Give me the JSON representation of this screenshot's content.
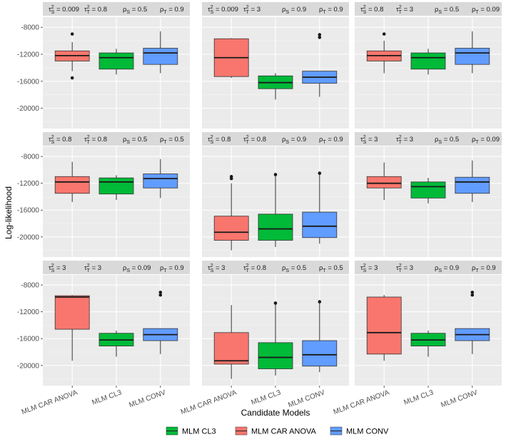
{
  "chart_data": {
    "type": "box",
    "xlabel": "Candidate Models",
    "ylabel": "Log-likelihood",
    "categories": [
      "MLM CAR ANOVA",
      "MLM CL3",
      "MLM CONV"
    ],
    "y_ticks": [
      -8000,
      -12000,
      -16000,
      -20000
    ],
    "y_tick_labels": [
      "-8000",
      "-12000",
      "-16000",
      "-20000"
    ],
    "ylim": [
      -23000,
      -6500
    ],
    "grid": true,
    "legend": {
      "position": "bottom",
      "entries": [
        {
          "label": "MLM CL3",
          "color": "#00BA38"
        },
        {
          "label": "MLM CAR ANOVA",
          "color": "#F8766D"
        },
        {
          "label": "MLM CONV",
          "color": "#619CFF"
        }
      ]
    },
    "series_colors": {
      "MLM CAR ANOVA": "#F8766D",
      "MLM CL3": "#00BA38",
      "MLM CONV": "#619CFF"
    },
    "panels": [
      {
        "strip": {
          "tauS": "0.009",
          "tauT": "0.8",
          "rhoS": "0.5",
          "rhoT": "0.9"
        },
        "boxes": [
          {
            "model": "MLM CAR ANOVA",
            "min": -14500,
            "q1": -13000,
            "median": -12200,
            "q3": -11500,
            "max": -10200,
            "outliers": [
              -9000,
              -15500
            ]
          },
          {
            "model": "MLM CL3",
            "min": -15000,
            "q1": -14200,
            "median": -12500,
            "q3": -11800,
            "max": -11200,
            "outliers": []
          },
          {
            "model": "MLM CONV",
            "min": -14800,
            "q1": -13500,
            "median": -11800,
            "q3": -11100,
            "max": -8600,
            "outliers": []
          }
        ]
      },
      {
        "strip": {
          "tauS": "0.009",
          "tauT": "3",
          "rhoS": "0.9",
          "rhoT": "0.9"
        },
        "boxes": [
          {
            "model": "MLM CAR ANOVA",
            "min": -15500,
            "q1": -15300,
            "median": -12500,
            "q3": -9700,
            "max": -9600,
            "outliers": []
          },
          {
            "model": "MLM CL3",
            "min": -18700,
            "q1": -17100,
            "median": -16200,
            "q3": -15200,
            "max": -14800,
            "outliers": []
          },
          {
            "model": "MLM CONV",
            "min": -18300,
            "q1": -16300,
            "median": -15400,
            "q3": -14500,
            "max": -14500,
            "outliers": [
              -9100,
              -9500
            ]
          }
        ]
      },
      {
        "strip": {
          "tauS": "0.8",
          "tauT": "3",
          "rhoS": "0.5",
          "rhoT": "0.09"
        },
        "boxes": [
          {
            "model": "MLM CAR ANOVA",
            "min": -14800,
            "q1": -13000,
            "median": -12200,
            "q3": -11500,
            "max": -10000,
            "outliers": [
              -9000
            ]
          },
          {
            "model": "MLM CL3",
            "min": -15000,
            "q1": -14200,
            "median": -12500,
            "q3": -11800,
            "max": -11200,
            "outliers": []
          },
          {
            "model": "MLM CONV",
            "min": -14800,
            "q1": -13500,
            "median": -11800,
            "q3": -11100,
            "max": -8600,
            "outliers": []
          }
        ]
      },
      {
        "strip": {
          "tauS": "0.8",
          "tauT": "0.8",
          "rhoS": "0.5",
          "rhoT": "0.5"
        },
        "boxes": [
          {
            "model": "MLM CAR ANOVA",
            "min": -14800,
            "q1": -13500,
            "median": -11800,
            "q3": -11000,
            "max": -8800,
            "outliers": []
          },
          {
            "model": "MLM CL3",
            "min": -14500,
            "q1": -13600,
            "median": -11800,
            "q3": -11200,
            "max": -10800,
            "outliers": []
          },
          {
            "model": "MLM CONV",
            "min": -14200,
            "q1": -12700,
            "median": -11300,
            "q3": -10600,
            "max": -8400,
            "outliers": []
          }
        ]
      },
      {
        "strip": {
          "tauS": "0.8",
          "tauT": "0.8",
          "rhoS": "0.9",
          "rhoT": "0.9"
        },
        "boxes": [
          {
            "model": "MLM CAR ANOVA",
            "min": -22000,
            "q1": -20500,
            "median": -19300,
            "q3": -16900,
            "max": -12000,
            "outliers": [
              -11000,
              -11300
            ]
          },
          {
            "model": "MLM CL3",
            "min": -21500,
            "q1": -20500,
            "median": -18800,
            "q3": -16600,
            "max": -10800,
            "outliers": [
              -10700
            ]
          },
          {
            "model": "MLM CONV",
            "min": -21000,
            "q1": -20100,
            "median": -18400,
            "q3": -16300,
            "max": -10600,
            "outliers": [
              -10500
            ]
          }
        ]
      },
      {
        "strip": {
          "tauS": "3",
          "tauT": "3",
          "rhoS": "0.5",
          "rhoT": "0.09"
        },
        "boxes": [
          {
            "model": "MLM CAR ANOVA",
            "min": -14500,
            "q1": -12700,
            "median": -12000,
            "q3": -11000,
            "max": -8900,
            "outliers": []
          },
          {
            "model": "MLM CL3",
            "min": -15000,
            "q1": -14200,
            "median": -12500,
            "q3": -11800,
            "max": -11200,
            "outliers": []
          },
          {
            "model": "MLM CONV",
            "min": -14800,
            "q1": -13500,
            "median": -11800,
            "q3": -11100,
            "max": -8600,
            "outliers": []
          }
        ]
      },
      {
        "strip": {
          "tauS": "3",
          "tauT": "3",
          "rhoS": "0.09",
          "rhoT": "0.9"
        },
        "boxes": [
          {
            "model": "MLM CAR ANOVA",
            "min": -19300,
            "q1": -14600,
            "median": -9800,
            "q3": -9600,
            "max": -9500,
            "outliers": []
          },
          {
            "model": "MLM CL3",
            "min": -18700,
            "q1": -17100,
            "median": -16200,
            "q3": -15200,
            "max": -14800,
            "outliers": []
          },
          {
            "model": "MLM CONV",
            "min": -18300,
            "q1": -16300,
            "median": -15400,
            "q3": -14500,
            "max": -14500,
            "outliers": [
              -9100,
              -9500
            ]
          }
        ]
      },
      {
        "strip": {
          "tauS": "3",
          "tauT": "0.8",
          "rhoS": "0.5",
          "rhoT": "0.5"
        },
        "boxes": [
          {
            "model": "MLM CAR ANOVA",
            "min": -22000,
            "q1": -19800,
            "median": -19300,
            "q3": -15100,
            "max": -11000,
            "outliers": []
          },
          {
            "model": "MLM CL3",
            "min": -21500,
            "q1": -20500,
            "median": -18800,
            "q3": -16600,
            "max": -10800,
            "outliers": [
              -10700
            ]
          },
          {
            "model": "MLM CONV",
            "min": -21000,
            "q1": -20100,
            "median": -18400,
            "q3": -16300,
            "max": -10600,
            "outliers": [
              -10500
            ]
          }
        ]
      },
      {
        "strip": {
          "tauS": "3",
          "tauT": "3",
          "rhoS": "0.9",
          "rhoT": "0.9"
        },
        "boxes": [
          {
            "model": "MLM CAR ANOVA",
            "min": -19300,
            "q1": -18300,
            "median": -15100,
            "q3": -9800,
            "max": -9500,
            "outliers": []
          },
          {
            "model": "MLM CL3",
            "min": -18700,
            "q1": -17100,
            "median": -16200,
            "q3": -15200,
            "max": -14800,
            "outliers": []
          },
          {
            "model": "MLM CONV",
            "min": -18300,
            "q1": -16300,
            "median": -15400,
            "q3": -14500,
            "max": -14500,
            "outliers": [
              -9100,
              -9500
            ]
          }
        ]
      }
    ]
  }
}
